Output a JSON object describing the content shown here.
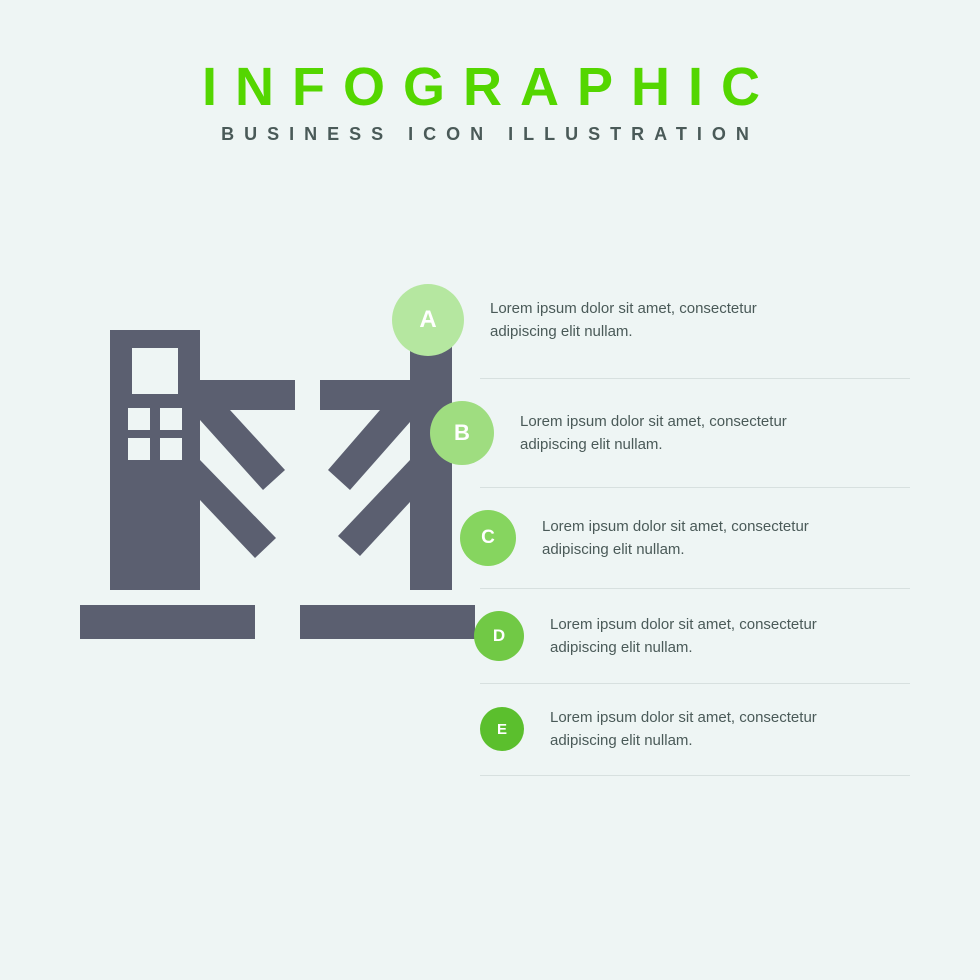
{
  "header": {
    "title": "INFOGRAPHIC",
    "subtitle": "BUSINESS ICON ILLUSTRATION",
    "title_color": "#54d600",
    "subtitle_color": "#4a5a58",
    "title_fontsize": 54,
    "title_letterspacing": 18,
    "subtitle_fontsize": 18,
    "subtitle_letterspacing": 10
  },
  "background_color": "#eef5f4",
  "divider_color": "#d7e0df",
  "text_color": "#4a5a58",
  "icon": {
    "name": "turnstile-gate-icon",
    "fill": "#5b5f70",
    "background": "#eef5f4"
  },
  "steps": {
    "type": "infographic-list",
    "layout": "vertical-curve",
    "badge_text_color": "#ffffff",
    "badge_sizes": [
      72,
      64,
      56,
      50,
      44
    ],
    "badge_left_offsets": [
      88,
      50,
      20,
      6,
      0
    ],
    "items": [
      {
        "letter": "A",
        "color": "#b5e7a0",
        "text": "Lorem ipsum dolor sit amet, consectetur adipiscing elit nullam."
      },
      {
        "letter": "B",
        "color": "#9fdd80",
        "text": "Lorem ipsum dolor sit amet, consectetur adipiscing elit nullam."
      },
      {
        "letter": "C",
        "color": "#86d55f",
        "text": "Lorem ipsum dolor sit amet, consectetur adipiscing elit nullam."
      },
      {
        "letter": "D",
        "color": "#71c945",
        "text": "Lorem ipsum dolor sit amet, consectetur adipiscing elit nullam."
      },
      {
        "letter": "E",
        "color": "#5bbf2d",
        "text": "Lorem ipsum dolor sit amet, consectetur adipiscing elit nullam."
      }
    ]
  }
}
